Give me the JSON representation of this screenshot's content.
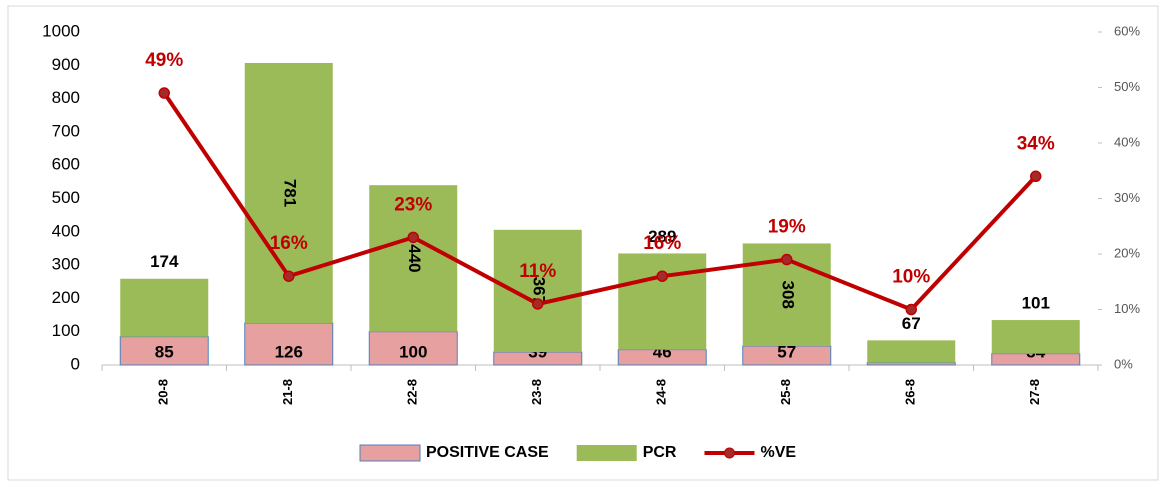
{
  "chart_data": {
    "type": "bar",
    "categories": [
      "20-8",
      "21-8",
      "22-8",
      "23-8",
      "24-8",
      "25-8",
      "26-8",
      "27-8"
    ],
    "series": [
      {
        "name": "POSITIVE CASE",
        "color": "#e6a0a0",
        "values": [
          85,
          126,
          100,
          39,
          46,
          57,
          7,
          34
        ]
      },
      {
        "name": "PCR",
        "color": "#9bbb59",
        "values": [
          174,
          781,
          440,
          367,
          289,
          308,
          67,
          101
        ]
      },
      {
        "name": "%VE",
        "color": "#c00000",
        "type": "line",
        "axis": "y2",
        "values": [
          49,
          16,
          23,
          11,
          16,
          19,
          10,
          34
        ],
        "value_labels": [
          "49%",
          "16%",
          "23%",
          "11%",
          "16%",
          "19%",
          "10%",
          "34%"
        ]
      }
    ],
    "stacked": true,
    "ylim": [
      0,
      1000
    ],
    "yticks": [
      0,
      100,
      200,
      300,
      400,
      500,
      600,
      700,
      800,
      900,
      1000
    ],
    "y2lim": [
      0,
      60
    ],
    "y2ticks": [
      {
        "value": 0,
        "label": "0%"
      },
      {
        "value": 10,
        "label": "10%"
      },
      {
        "value": 20,
        "label": "20%"
      },
      {
        "value": 30,
        "label": "30%"
      },
      {
        "value": 40,
        "label": "40%"
      },
      {
        "value": 50,
        "label": "50%"
      },
      {
        "value": 60,
        "label": "60%"
      }
    ],
    "legend": "bottom"
  }
}
